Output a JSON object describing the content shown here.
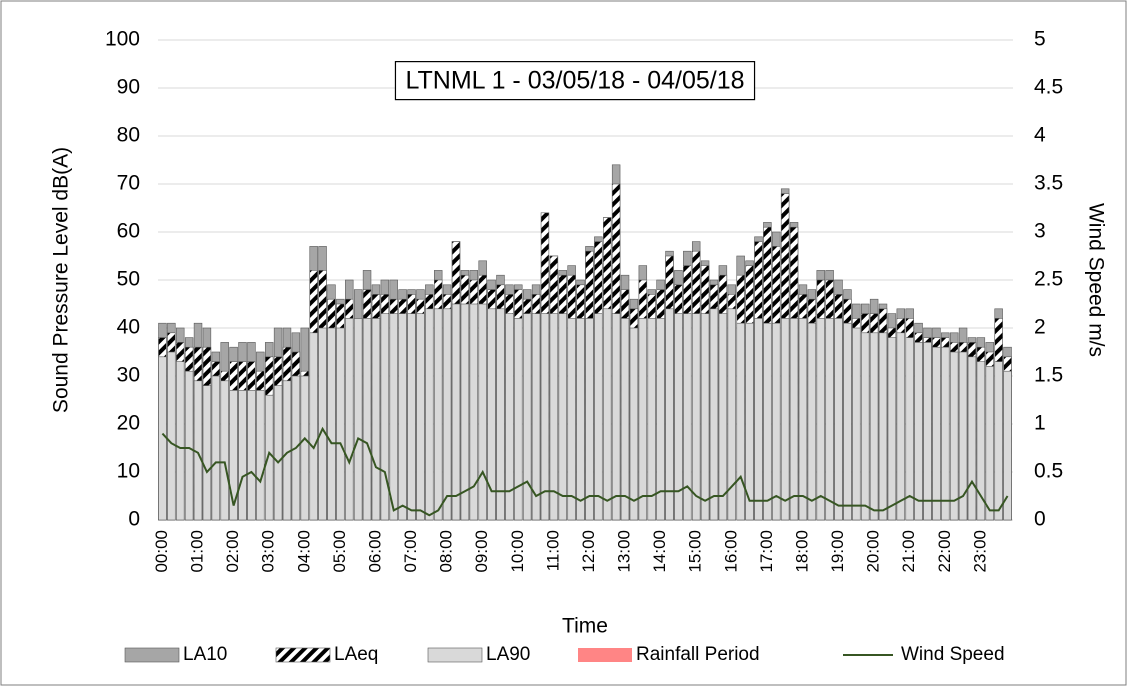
{
  "chart_data": {
    "type": "bar",
    "title": "LTNML 1 - 03/05/18 - 04/05/18",
    "x_label": "Time",
    "y_label": "Sound Pressure Level dB(A)",
    "y2_label": "Wind Speed m/s",
    "categories": [
      "00:00",
      null,
      null,
      null,
      "01:00",
      null,
      null,
      null,
      "02:00",
      null,
      null,
      null,
      "03:00",
      null,
      null,
      null,
      "04:00",
      null,
      null,
      null,
      "05:00",
      null,
      null,
      null,
      "06:00",
      null,
      null,
      null,
      "07:00",
      null,
      null,
      null,
      "08:00",
      null,
      null,
      null,
      "09:00",
      null,
      null,
      null,
      "10:00",
      null,
      null,
      null,
      "11:00",
      null,
      null,
      null,
      "12:00",
      null,
      null,
      null,
      "13:00",
      null,
      null,
      null,
      "14:00",
      null,
      null,
      null,
      "15:00",
      null,
      null,
      null,
      "16:00",
      null,
      null,
      null,
      "17:00",
      null,
      null,
      null,
      "18:00",
      null,
      null,
      null,
      "19:00",
      null,
      null,
      null,
      "20:00",
      null,
      null,
      null,
      "21:00",
      null,
      null,
      null,
      "22:00",
      null,
      null,
      null,
      "23:00",
      null,
      null,
      null
    ],
    "series": [
      {
        "name": "LA10",
        "color": "#a6a6a6",
        "values": [
          41,
          41,
          40,
          38,
          41,
          40,
          35,
          37,
          36,
          37,
          37,
          35,
          37,
          40,
          40,
          39,
          40,
          57,
          57,
          49,
          46,
          50,
          48,
          52,
          49,
          50,
          50,
          48,
          48,
          48,
          49,
          52,
          49,
          58,
          52,
          52,
          54,
          50,
          51,
          49,
          49,
          48,
          49,
          52,
          55,
          52,
          53,
          50,
          57,
          59,
          63,
          74,
          51,
          46,
          53,
          48,
          50,
          56,
          52,
          56,
          58,
          54,
          50,
          53,
          49,
          55,
          54,
          59,
          62,
          60,
          69,
          62,
          49,
          48,
          52,
          52,
          50,
          48,
          45,
          45,
          46,
          45,
          43,
          44,
          44,
          41,
          40,
          40,
          39,
          39,
          40,
          38,
          38,
          37,
          44,
          36
        ]
      },
      {
        "name": "LAeq",
        "color": "hatch",
        "values": [
          38,
          39,
          37,
          36,
          36,
          36,
          33,
          31,
          33,
          33,
          33,
          31,
          34,
          34,
          36,
          35,
          31,
          52,
          52,
          46,
          45,
          46,
          42,
          48,
          47,
          47,
          46,
          46,
          47,
          46,
          47,
          50,
          47,
          58,
          51,
          50,
          51,
          48,
          49,
          47,
          48,
          46,
          47,
          64,
          55,
          51,
          51,
          49,
          56,
          58,
          63,
          70,
          48,
          44,
          50,
          47,
          48,
          55,
          49,
          53,
          56,
          53,
          49,
          51,
          47,
          51,
          53,
          58,
          61,
          57,
          68,
          61,
          47,
          46,
          50,
          50,
          47,
          46,
          42,
          43,
          43,
          44,
          40,
          42,
          42,
          39,
          38,
          38,
          38,
          37,
          37,
          37,
          36,
          35,
          42,
          34
        ]
      },
      {
        "name": "LA90",
        "color": "#d9d9d9",
        "values": [
          34,
          35,
          33,
          31,
          29,
          28,
          30,
          29,
          27,
          27,
          27,
          27,
          26,
          28,
          29,
          30,
          30,
          39,
          40,
          40,
          40,
          42,
          42,
          42,
          42,
          43,
          43,
          43,
          43,
          43,
          44,
          44,
          44,
          45,
          45,
          45,
          45,
          44,
          44,
          43,
          42,
          43,
          43,
          43,
          43,
          43,
          42,
          42,
          42,
          43,
          44,
          43,
          42,
          40,
          42,
          42,
          42,
          44,
          43,
          43,
          43,
          43,
          44,
          43,
          44,
          41,
          41,
          42,
          41,
          41,
          42,
          42,
          42,
          41,
          42,
          42,
          42,
          41,
          40,
          39,
          39,
          39,
          38,
          39,
          38,
          37,
          37,
          36,
          36,
          35,
          35,
          34,
          33,
          32,
          33,
          31
        ]
      },
      {
        "name": "Rainfall Period",
        "color": "#ff8585",
        "values": [
          null,
          null,
          null,
          null,
          null,
          null,
          null,
          null,
          null,
          null,
          null,
          null,
          null,
          null,
          null,
          null,
          null,
          null,
          null,
          null,
          null,
          null,
          null,
          null,
          null,
          null,
          null,
          null,
          null,
          null,
          null,
          null,
          null,
          null,
          null,
          null,
          null,
          null,
          null,
          null,
          null,
          null,
          null,
          null,
          null,
          null,
          null,
          null,
          null,
          null,
          null,
          null,
          null,
          null,
          null,
          null,
          null,
          null,
          null,
          null,
          null,
          null,
          null,
          null,
          null,
          null,
          null,
          null,
          null,
          null,
          null,
          null,
          null,
          null,
          null,
          null,
          null,
          null,
          null,
          null,
          null,
          null,
          null,
          null,
          null,
          null,
          null,
          null,
          null,
          null,
          null,
          null,
          null,
          null,
          null,
          null
        ]
      },
      {
        "name": "Wind Speed",
        "color": "#375623",
        "type": "line",
        "axis": "y2",
        "values": [
          0.9,
          0.8,
          0.75,
          0.75,
          0.7,
          0.5,
          0.6,
          0.6,
          0.15,
          0.45,
          0.5,
          0.4,
          0.7,
          0.6,
          0.7,
          0.75,
          0.85,
          0.75,
          0.95,
          0.8,
          0.8,
          0.6,
          0.85,
          0.8,
          0.55,
          0.5,
          0.1,
          0.15,
          0.1,
          0.1,
          0.05,
          0.1,
          0.25,
          0.25,
          0.3,
          0.35,
          0.5,
          0.3,
          0.3,
          0.3,
          0.35,
          0.4,
          0.25,
          0.3,
          0.3,
          0.25,
          0.25,
          0.2,
          0.25,
          0.25,
          0.2,
          0.25,
          0.25,
          0.2,
          0.25,
          0.25,
          0.3,
          0.3,
          0.3,
          0.35,
          0.25,
          0.2,
          0.25,
          0.25,
          0.35,
          0.45,
          0.2,
          0.2,
          0.2,
          0.25,
          0.2,
          0.25,
          0.25,
          0.2,
          0.25,
          0.2,
          0.15,
          0.15,
          0.15,
          0.15,
          0.1,
          0.1,
          0.15,
          0.2,
          0.25,
          0.2,
          0.2,
          0.2,
          0.2,
          0.2,
          0.25,
          0.4,
          0.25,
          0.1,
          0.1,
          0.25
        ]
      }
    ],
    "ylim": [
      0,
      100
    ],
    "yticks": [
      0,
      10,
      20,
      30,
      40,
      50,
      60,
      70,
      80,
      90,
      100
    ],
    "y2lim": [
      0,
      5
    ],
    "y2ticks": [
      0,
      0.5,
      1,
      1.5,
      2,
      2.5,
      3,
      3.5,
      4,
      4.5,
      5
    ],
    "grid": true,
    "legend": "bottom"
  }
}
